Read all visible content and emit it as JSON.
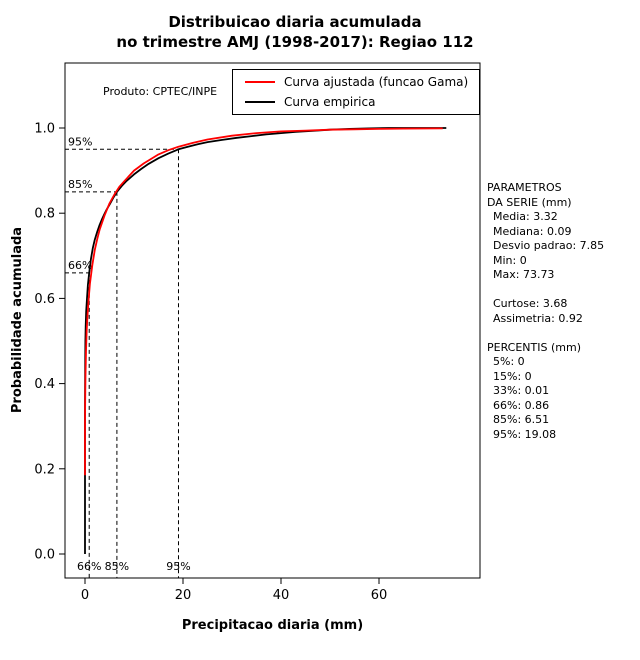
{
  "chart_data": {
    "type": "line",
    "title_line1": "Distribuicao diaria acumulada",
    "title_line2": "no trimestre AMJ (1998-2017): Regiao 112",
    "xlabel": "Precipitacao diaria (mm)",
    "ylabel": "Probabilidade acumulada",
    "annotation": "Produto: CPTEC/INPE",
    "xlim": [
      0,
      80
    ],
    "ylim": [
      0,
      1.0
    ],
    "x_ticks": [
      0,
      20,
      40,
      60
    ],
    "y_ticks": [
      0,
      0.2,
      0.4,
      0.6,
      0.8,
      1.0
    ],
    "grid": false,
    "legend_position": "top-right",
    "series": [
      {
        "name": "Curva ajustada (funcao Gama)",
        "color": "#ff0000",
        "points": [
          [
            0.001,
            0.185
          ],
          [
            0.003,
            0.23
          ],
          [
            0.01,
            0.28
          ],
          [
            0.03,
            0.34
          ],
          [
            0.06,
            0.385
          ],
          [
            0.1,
            0.42
          ],
          [
            0.2,
            0.475
          ],
          [
            0.35,
            0.525
          ],
          [
            0.5,
            0.56
          ],
          [
            0.75,
            0.6
          ],
          [
            1,
            0.634
          ],
          [
            1.5,
            0.678
          ],
          [
            2,
            0.714
          ],
          [
            2.5,
            0.74
          ],
          [
            3,
            0.762
          ],
          [
            4,
            0.795
          ],
          [
            5,
            0.823
          ],
          [
            6,
            0.844
          ],
          [
            7,
            0.862
          ],
          [
            8,
            0.875
          ],
          [
            10,
            0.9
          ],
          [
            12,
            0.917
          ],
          [
            15,
            0.938
          ],
          [
            17,
            0.948
          ],
          [
            19.08,
            0.956
          ],
          [
            22,
            0.965
          ],
          [
            25,
            0.973
          ],
          [
            30,
            0.982
          ],
          [
            35,
            0.988
          ],
          [
            40,
            0.992
          ],
          [
            45,
            0.994
          ],
          [
            50,
            0.996
          ],
          [
            55,
            0.997
          ],
          [
            60,
            0.998
          ],
          [
            65,
            0.9985
          ],
          [
            73,
            0.999
          ]
        ]
      },
      {
        "name": "Curva empirica",
        "color": "#000000",
        "points": [
          [
            0,
            0
          ],
          [
            0,
            0.3
          ],
          [
            0.01,
            0.33
          ],
          [
            0.03,
            0.4
          ],
          [
            0.05,
            0.44
          ],
          [
            0.09,
            0.5
          ],
          [
            0.15,
            0.535
          ],
          [
            0.25,
            0.57
          ],
          [
            0.4,
            0.6
          ],
          [
            0.6,
            0.632
          ],
          [
            0.86,
            0.66
          ],
          [
            1.2,
            0.692
          ],
          [
            1.6,
            0.718
          ],
          [
            2,
            0.738
          ],
          [
            2.5,
            0.757
          ],
          [
            3,
            0.773
          ],
          [
            3.5,
            0.787
          ],
          [
            4,
            0.799
          ],
          [
            4.5,
            0.81
          ],
          [
            5,
            0.82
          ],
          [
            5.75,
            0.836
          ],
          [
            6.51,
            0.85
          ],
          [
            7.5,
            0.864
          ],
          [
            8.5,
            0.876
          ],
          [
            10,
            0.891
          ],
          [
            11.5,
            0.904
          ],
          [
            13,
            0.916
          ],
          [
            15,
            0.929
          ],
          [
            17,
            0.94
          ],
          [
            19.08,
            0.95
          ],
          [
            21,
            0.956
          ],
          [
            23,
            0.962
          ],
          [
            25,
            0.967
          ],
          [
            28,
            0.972
          ],
          [
            31,
            0.977
          ],
          [
            34,
            0.981
          ],
          [
            37,
            0.985
          ],
          [
            40,
            0.988
          ],
          [
            43,
            0.991
          ],
          [
            46,
            0.993
          ],
          [
            50,
            0.996
          ],
          [
            54,
            0.998
          ],
          [
            58,
            0.999
          ],
          [
            62,
            1.0
          ],
          [
            73.73,
            1.0
          ]
        ]
      }
    ],
    "percentile_guides": [
      {
        "label": "66%",
        "p": 0.66,
        "x": 0.86
      },
      {
        "label": "85%",
        "p": 0.85,
        "x": 6.51
      },
      {
        "label": "95%",
        "p": 0.95,
        "x": 19.08
      }
    ],
    "stats": {
      "media": 3.32,
      "mediana": 0.09,
      "desvio_padrao": 7.85,
      "min": 0,
      "max": 73.73,
      "curtose": 3.68,
      "assimetria": 0.92,
      "percentis": {
        "p5": 0,
        "p15": 0,
        "p33": 0.01,
        "p66": 0.86,
        "p85": 6.51,
        "p95": 19.08
      }
    }
  },
  "stats_panel": {
    "lines": [
      "PARAMETROS",
      "DA SERIE (mm)",
      "Media: 3.32",
      "Mediana: 0.09",
      "Desvio padrao: 7.85",
      "Min: 0",
      "Max: 73.73",
      "",
      "Curtose: 3.68",
      "Assimetria: 0.92",
      "",
      "PERCENTIS (mm)",
      "5%: 0",
      "15%: 0",
      "33%: 0.01",
      "66%: 0.86",
      "85%: 6.51",
      "95%: 19.08"
    ]
  }
}
